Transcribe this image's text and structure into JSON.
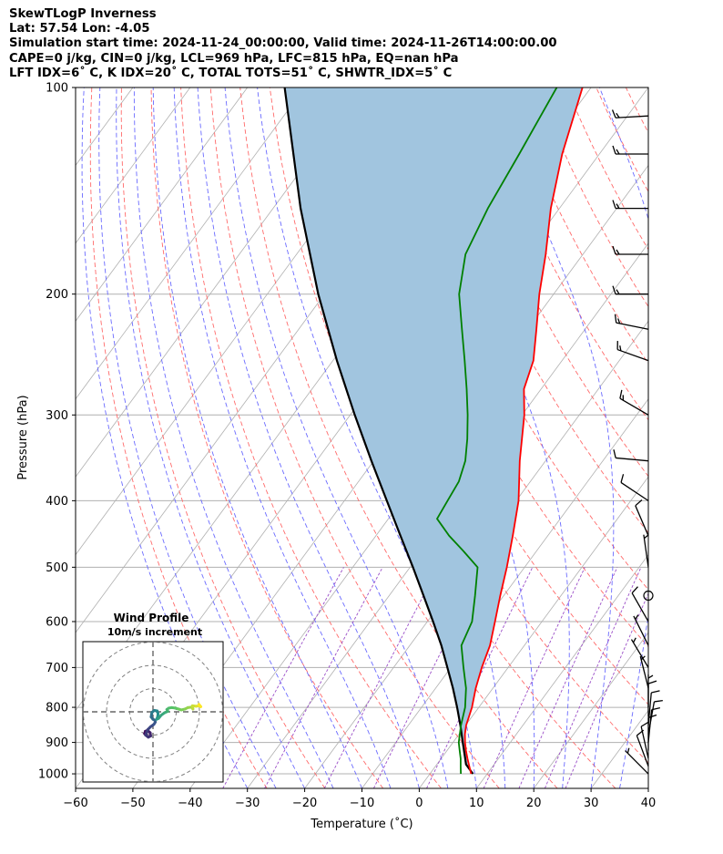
{
  "header": {
    "line1": "SkewTLogP Inverness",
    "line2": "Lat: 57.54   Lon: -4.05",
    "line3": "Simulation start time: 2024-11-24_00:00:00, Valid time: 2024-11-26T14:00:00.00",
    "line4": "CAPE=0 j/kg, CIN=0 j/kg, LCL=969 hPa, LFC=815 hPa, EQ=nan hPa",
    "line5": "LFT IDX=6˚ C, K IDX=20˚ C, TOTAL TOTS=51˚ C, SHWTR_IDX=5˚ C"
  },
  "chart_data": {
    "type": "line",
    "subtype": "skew-T log-P",
    "xlabel": "Temperature (˚C)",
    "ylabel": "Pressure (hPa)",
    "xlim": [
      -60,
      40
    ],
    "ylim": [
      1050,
      100
    ],
    "x_ticks": [
      -60,
      -50,
      -40,
      -30,
      -20,
      -10,
      0,
      10,
      20,
      30,
      40
    ],
    "y_ticks": [
      1000,
      900,
      800,
      700,
      600,
      500,
      400,
      300,
      200,
      100
    ],
    "grid": true,
    "colors": {
      "temperature": "#ff0000",
      "dewpoint": "#008000",
      "parcel": "#000000",
      "cape_fill": "#a1c5df",
      "dry_adiabat": "#ff6a6a",
      "moist_adiabat": "#6a6aff",
      "mixing_ratio": "#9b4fc8",
      "isotherm": "#b0b0b0"
    },
    "temperature": [
      [
        1000,
        7.2
      ],
      [
        975,
        5.9
      ],
      [
        950,
        4.6
      ],
      [
        925,
        3.3
      ],
      [
        900,
        2.1
      ],
      [
        875,
        1.0
      ],
      [
        850,
        0.1
      ],
      [
        800,
        -1.2
      ],
      [
        750,
        -3.0
      ],
      [
        700,
        -4.6
      ],
      [
        650,
        -6.0
      ],
      [
        600,
        -8.2
      ],
      [
        550,
        -10.6
      ],
      [
        500,
        -13.1
      ],
      [
        450,
        -16.1
      ],
      [
        400,
        -19.6
      ],
      [
        350,
        -24.5
      ],
      [
        300,
        -29.6
      ],
      [
        275,
        -33.0
      ],
      [
        250,
        -35.0
      ],
      [
        225,
        -38.5
      ],
      [
        200,
        -42.5
      ],
      [
        175,
        -46.5
      ],
      [
        150,
        -51.5
      ],
      [
        125,
        -56.5
      ],
      [
        100,
        -61.5
      ]
    ],
    "dewpoint": [
      [
        1000,
        5.4
      ],
      [
        975,
        4.4
      ],
      [
        950,
        3.4
      ],
      [
        925,
        2.2
      ],
      [
        900,
        1.0
      ],
      [
        850,
        -0.8
      ],
      [
        800,
        -2.4
      ],
      [
        750,
        -4.7
      ],
      [
        700,
        -7.8
      ],
      [
        650,
        -11.0
      ],
      [
        600,
        -12.2
      ],
      [
        550,
        -15.0
      ],
      [
        500,
        -18.2
      ],
      [
        475,
        -22.5
      ],
      [
        450,
        -27.2
      ],
      [
        425,
        -31.5
      ],
      [
        400,
        -32.0
      ],
      [
        375,
        -32.5
      ],
      [
        350,
        -34.0
      ],
      [
        325,
        -36.5
      ],
      [
        300,
        -39.5
      ],
      [
        275,
        -43.0
      ],
      [
        250,
        -47.0
      ],
      [
        225,
        -51.5
      ],
      [
        200,
        -56.5
      ],
      [
        175,
        -60.5
      ],
      [
        150,
        -62.5
      ],
      [
        125,
        -64.0
      ],
      [
        100,
        -66.0
      ]
    ],
    "parcel": [
      [
        1000,
        7.5
      ],
      [
        969,
        5.1
      ],
      [
        950,
        4.2
      ],
      [
        900,
        1.7
      ],
      [
        850,
        -0.9
      ],
      [
        800,
        -3.8
      ],
      [
        750,
        -7.0
      ],
      [
        700,
        -10.6
      ],
      [
        650,
        -14.5
      ],
      [
        600,
        -19.0
      ],
      [
        550,
        -24.0
      ],
      [
        500,
        -29.5
      ],
      [
        450,
        -35.7
      ],
      [
        400,
        -42.6
      ],
      [
        350,
        -50.4
      ],
      [
        300,
        -59.2
      ],
      [
        250,
        -69.3
      ],
      [
        200,
        -81.1
      ],
      [
        150,
        -95.2
      ],
      [
        100,
        -113.5
      ]
    ],
    "wind_barbs": [
      {
        "p": 1000,
        "u": -5,
        "v": 5
      },
      {
        "p": 975,
        "u": -3,
        "v": 8
      },
      {
        "p": 950,
        "u": -2,
        "v": 9
      },
      {
        "p": 925,
        "u": 0,
        "v": 10
      },
      {
        "p": 900,
        "u": 1,
        "v": 10
      },
      {
        "p": 875,
        "u": 2,
        "v": 11
      },
      {
        "p": 850,
        "u": 1,
        "v": 11
      },
      {
        "p": 825,
        "u": 0,
        "v": 8
      },
      {
        "p": 800,
        "u": 0,
        "v": 6
      },
      {
        "p": 750,
        "u": -1,
        "v": 4
      },
      {
        "p": 700,
        "u": -3,
        "v": 5
      },
      {
        "p": 650,
        "u": -3,
        "v": 6
      },
      {
        "p": 600,
        "u": -4,
        "v": 7
      },
      {
        "p": 550,
        "u": 0,
        "v": 0
      },
      {
        "p": 500,
        "u": -1,
        "v": 7
      },
      {
        "p": 450,
        "u": -3,
        "v": 7
      },
      {
        "p": 400,
        "u": -9,
        "v": 6
      },
      {
        "p": 350,
        "u": -11,
        "v": 1
      },
      {
        "p": 300,
        "u": -12,
        "v": 7
      },
      {
        "p": 250,
        "u": -14,
        "v": 5
      },
      {
        "p": 225,
        "u": -15,
        "v": 3
      },
      {
        "p": 200,
        "u": -15,
        "v": 0
      },
      {
        "p": 175,
        "u": -16,
        "v": 0
      },
      {
        "p": 150,
        "u": -15,
        "v": 0
      },
      {
        "p": 125,
        "u": -16,
        "v": 0
      },
      {
        "p": 110,
        "u": -17,
        "v": -1
      }
    ],
    "hodograph": {
      "title": "Wind Profile",
      "subtitle": "10m/s increment",
      "ring_step_ms": 10,
      "rings": 3,
      "points": [
        [
          -2.8,
          -9.8
        ],
        [
          -3.6,
          -9.4
        ],
        [
          -3.3,
          -8.4
        ],
        [
          -2.4,
          -8.0
        ],
        [
          -1.2,
          -9.0
        ],
        [
          -1.0,
          -10.4
        ],
        [
          -2.0,
          -10.9
        ],
        [
          -3.2,
          -10.0
        ],
        [
          -2.2,
          -7.6
        ],
        [
          -1.0,
          -6.4
        ],
        [
          0.4,
          -5.4
        ],
        [
          1.0,
          -4.4
        ],
        [
          0.8,
          -3.6
        ],
        [
          0.0,
          -3.2
        ],
        [
          -0.8,
          -2.2
        ],
        [
          -0.6,
          -1.0
        ],
        [
          -0.4,
          -0.2
        ],
        [
          0.6,
          0.6
        ],
        [
          1.8,
          0.4
        ],
        [
          2.2,
          -0.8
        ],
        [
          2.0,
          -2.2
        ],
        [
          1.6,
          -3.2
        ],
        [
          2.4,
          -2.8
        ],
        [
          3.6,
          -1.4
        ],
        [
          5.0,
          -0.4
        ],
        [
          6.4,
          0.2
        ],
        [
          6.0,
          1.0
        ],
        [
          6.8,
          1.6
        ],
        [
          8.0,
          1.8
        ],
        [
          9.6,
          1.6
        ],
        [
          11.0,
          1.2
        ],
        [
          12.2,
          0.8
        ],
        [
          13.8,
          1.2
        ],
        [
          15.0,
          1.8
        ],
        [
          16.6,
          2.0
        ],
        [
          17.2,
          1.2
        ],
        [
          17.0,
          2.6
        ],
        [
          18.6,
          2.4
        ],
        [
          19.8,
          2.6
        ],
        [
          20.6,
          2.2
        ],
        [
          19.8,
          3.2
        ]
      ]
    }
  }
}
